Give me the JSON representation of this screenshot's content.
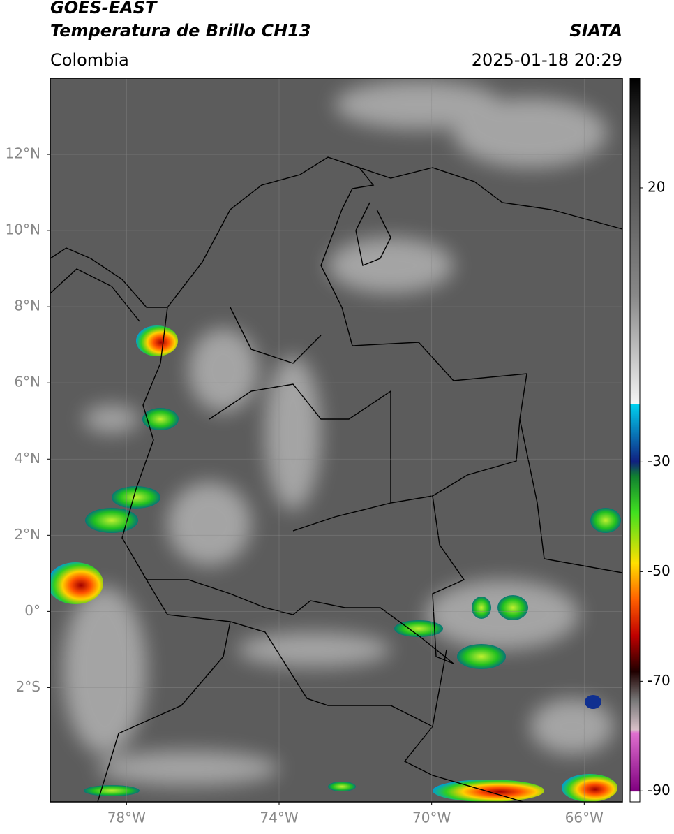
{
  "header": {
    "satellite": "GOES-EAST",
    "product": "Temperatura de Brillo CH13",
    "region": "Colombia",
    "source": "SIATA",
    "datetime": "2025-01-18 20:29"
  },
  "map": {
    "xlim": [
      -80,
      -65
    ],
    "ylim": [
      -5,
      14
    ],
    "lon_ticks": [
      {
        "value": -78,
        "label": "78°W"
      },
      {
        "value": -74,
        "label": "74°W"
      },
      {
        "value": -70,
        "label": "70°W"
      },
      {
        "value": -66,
        "label": "66°W"
      }
    ],
    "lat_ticks": [
      {
        "value": 12,
        "label": "12°N"
      },
      {
        "value": 10,
        "label": "10°N"
      },
      {
        "value": 8,
        "label": "8°N"
      },
      {
        "value": 6,
        "label": "6°N"
      },
      {
        "value": 4,
        "label": "4°N"
      },
      {
        "value": 2,
        "label": "2°N"
      },
      {
        "value": 0,
        "label": "0°"
      },
      {
        "value": -2,
        "label": "2°S"
      }
    ],
    "grid": true,
    "colorbar": {
      "lim": [
        -92,
        40
      ],
      "ticks": [
        20,
        -30,
        -50,
        -70,
        -90
      ]
    }
  }
}
